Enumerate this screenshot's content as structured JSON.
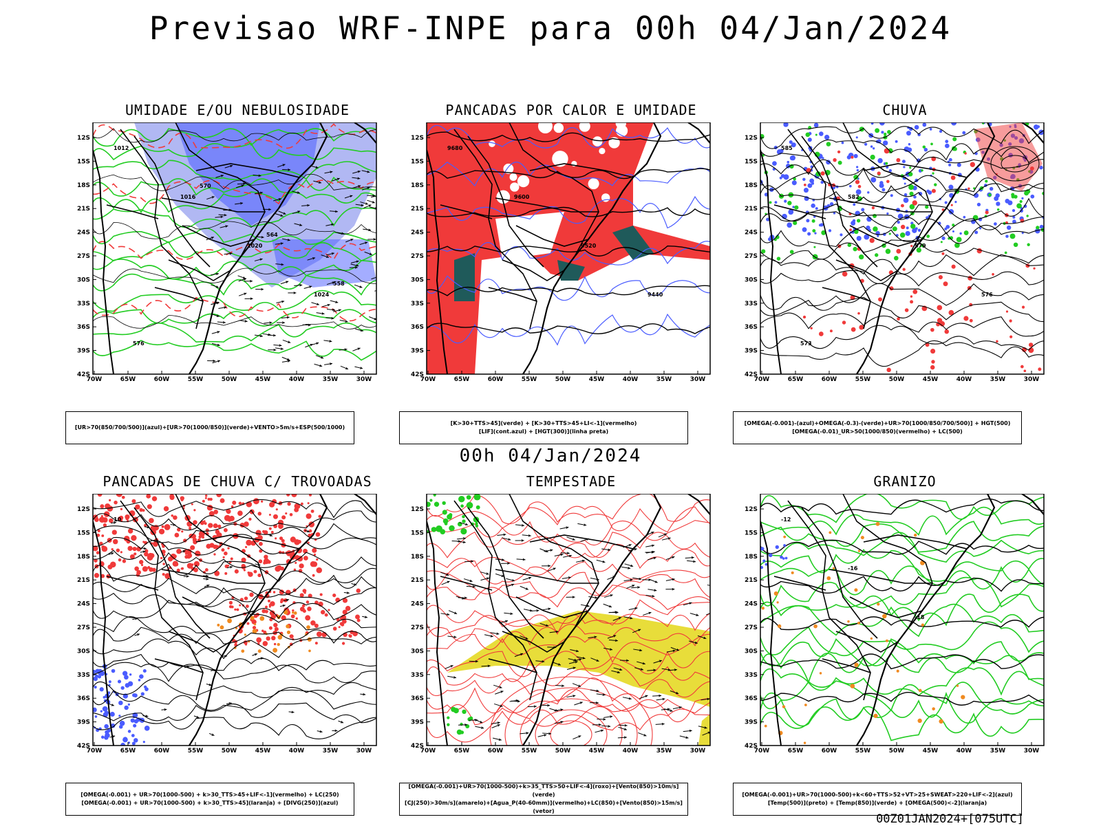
{
  "main_title": "Previsao WRF-INPE  para 00h 04/Jan/2024",
  "mid_title": "00h 04/Jan/2024",
  "footer": "00Z01JAN2024+[075UTC]",
  "lat_ticks": [
    "12S",
    "15S",
    "18S",
    "21S",
    "24S",
    "27S",
    "30S",
    "33S",
    "36S",
    "39S",
    "42S"
  ],
  "lon_ticks": [
    "70W",
    "65W",
    "60W",
    "55W",
    "50W",
    "45W",
    "40W",
    "35W",
    "30W"
  ],
  "colors": {
    "blue": "#4a5cff",
    "light_blue": "#9ea6f0",
    "green": "#22cc22",
    "red": "#f03a3a",
    "dark_teal": "#1f5a5a",
    "yellow": "#e8dd3a",
    "orange": "#f08a20",
    "black": "#000000"
  },
  "panels": [
    {
      "title": "UMIDADE E/OU NEBULOSIDADE",
      "caption_lines": [
        "[UR>70(850/700/500)](azul)+[UR>70(1000/850)](verde)+VENTO>5m/s+ESP(500/1000)"
      ],
      "contour_labels": [
        "1012",
        "1016",
        "1020",
        "1024",
        "576",
        "570",
        "564",
        "558"
      ]
    },
    {
      "title": "PANCADAS POR CALOR E UMIDADE",
      "caption_lines": [
        "[K>30+TTS>45](verde)  +  [K>30+TTS>45+LI<-1](vermelho)",
        "[LIF](cont.azul)  +  [HGT(300)](linha preta)"
      ],
      "contour_labels": [
        "9680",
        "9600",
        "9520",
        "9440"
      ]
    },
    {
      "title": "CHUVA",
      "caption_lines": [
        "[OMEGA(-0.001)-(azul)+OMEGA(-0.3)-(verde)+UR>70(1000/850/700/500)]  +  HGT(500)",
        "[OMEGA(-0.01)_UR>50(1000/850)(vermelho)  +  LC(500)"
      ],
      "contour_labels": [
        "585",
        "582",
        "579",
        "576",
        "573"
      ]
    },
    {
      "title": "PANCADAS DE CHUVA C/ TROVOADAS",
      "caption_lines": [
        "[OMEGA(-0.001)  +  UR>70(1000-500)  +  k>30_TTS>45+LIF<-1](vermelho)  +  LC(250)",
        "[OMEGA(-0.001)  +  UR>70(1000-500)  +  k>30_TTS>45](laranja)  +  [DIVG(250)](azul)"
      ],
      "contour_labels": [
        "10"
      ]
    },
    {
      "title": "TEMPESTADE",
      "caption_lines": [
        "[OMEGA(-0.001)+UR>70(1000-500)+k>35_TTS>50+LIF<-4](roxo)+[Vento(850)>10m/s](verde)",
        "[CJ(250)>30m/s](amarelo)+[Agua_P(40-60mm)](vermelho)+LC(850)+[Vento(850)>15m/s](vetor)"
      ],
      "contour_labels": []
    },
    {
      "title": "GRANIZO",
      "caption_lines": [
        "[OMEGA(-0.001)+UR>70(1000-500)+k<60+TTS>52+VT>25+SWEAT>220+LIF<-2](azul)",
        "[Temp(500)](preto)  +  [Temp(850)](verde)  +  [OMEGA(500)<-2](laranja)"
      ],
      "contour_labels": [
        "-12",
        "-16",
        "-18"
      ]
    }
  ]
}
